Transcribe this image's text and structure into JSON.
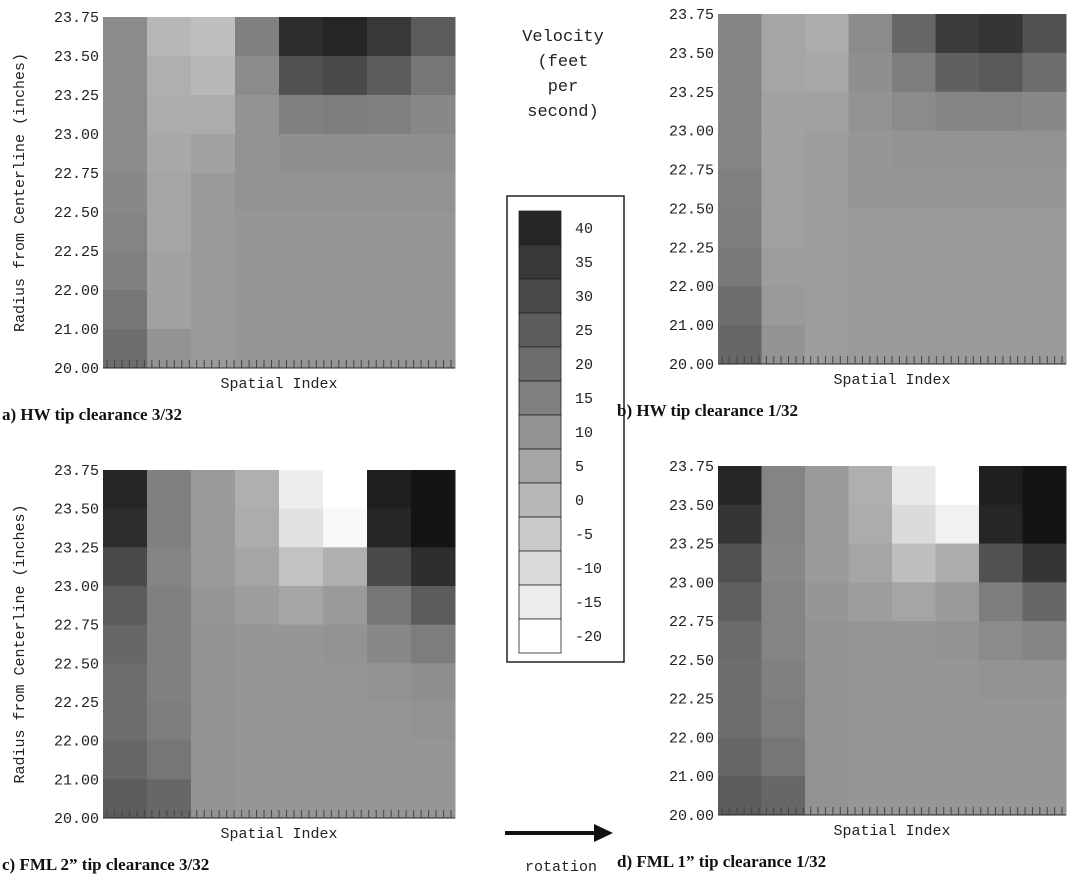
{
  "chart_data": [
    {
      "type": "heatmap",
      "caption": "a) HW tip clearance 3/32",
      "y_label": "Radius from Centerline (inches)",
      "x_label": "Spatial Index",
      "y_categories": [
        "23.75",
        "23.50",
        "23.25",
        "23.00",
        "22.75",
        "22.50",
        "22.25",
        "22.00",
        "21.00",
        "20.00"
      ],
      "z": [
        [
          12,
          0,
          -2,
          15,
          38,
          40,
          35,
          25
        ],
        [
          12,
          2,
          0,
          12,
          28,
          30,
          25,
          18
        ],
        [
          12,
          3,
          3,
          10,
          15,
          16,
          15,
          13
        ],
        [
          12,
          4,
          6,
          10,
          11,
          11,
          11,
          11
        ],
        [
          13,
          5,
          8,
          10,
          10,
          10,
          10,
          10
        ],
        [
          14,
          5,
          8,
          9,
          9,
          9,
          9,
          9
        ],
        [
          15,
          6,
          8,
          9,
          9,
          9,
          9,
          9
        ],
        [
          18,
          6,
          8,
          9,
          9,
          9,
          9,
          9
        ],
        [
          20,
          10,
          8,
          9,
          9,
          9,
          9,
          9
        ]
      ]
    },
    {
      "type": "heatmap",
      "caption": "b) HW tip clearance 1/32",
      "x_label": "Spatial Index",
      "y_categories": [
        "23.75",
        "23.50",
        "23.25",
        "23.00",
        "22.75",
        "22.50",
        "22.25",
        "22.00",
        "21.00",
        "20.00"
      ],
      "z": [
        [
          14,
          5,
          3,
          12,
          22,
          34,
          36,
          28
        ],
        [
          14,
          5,
          4,
          11,
          16,
          24,
          26,
          20
        ],
        [
          14,
          6,
          6,
          10,
          12,
          14,
          14,
          13
        ],
        [
          14,
          6,
          7,
          9,
          10,
          10,
          10,
          10
        ],
        [
          15,
          6,
          7,
          9,
          9,
          9,
          9,
          9
        ],
        [
          16,
          6,
          7,
          8,
          8,
          8,
          8,
          8
        ],
        [
          17,
          7,
          7,
          8,
          8,
          8,
          8,
          8
        ],
        [
          20,
          8,
          7,
          8,
          8,
          8,
          8,
          8
        ],
        [
          22,
          10,
          7,
          8,
          8,
          8,
          8,
          8
        ]
      ]
    },
    {
      "type": "heatmap",
      "caption": "c) FML 2” tip clearance 3/32",
      "y_label": "Radius from Centerline (inches)",
      "x_label": "Spatial Index",
      "y_categories": [
        "23.75",
        "23.50",
        "23.25",
        "23.00",
        "22.75",
        "22.50",
        "22.25",
        "22.00",
        "21.00",
        "20.00"
      ],
      "z": [
        [
          40,
          15,
          8,
          2,
          -15,
          -20,
          42,
          45
        ],
        [
          38,
          15,
          8,
          3,
          -12,
          -18,
          40,
          45
        ],
        [
          30,
          14,
          8,
          5,
          -3,
          2,
          30,
          38
        ],
        [
          25,
          15,
          9,
          7,
          5,
          8,
          18,
          25
        ],
        [
          22,
          15,
          10,
          9,
          9,
          10,
          13,
          16
        ],
        [
          20,
          15,
          10,
          9,
          9,
          9,
          10,
          11
        ],
        [
          20,
          16,
          10,
          9,
          9,
          9,
          9,
          10
        ],
        [
          22,
          18,
          10,
          9,
          9,
          9,
          9,
          9
        ],
        [
          25,
          22,
          10,
          9,
          9,
          9,
          9,
          9
        ]
      ]
    },
    {
      "type": "heatmap",
      "caption": "d) FML 1” tip clearance 1/32",
      "x_label": "Spatial Index",
      "y_categories": [
        "23.75",
        "23.50",
        "23.25",
        "23.00",
        "22.75",
        "22.50",
        "22.25",
        "22.00",
        "21.00",
        "20.00"
      ],
      "z": [
        [
          40,
          14,
          8,
          2,
          -14,
          -20,
          42,
          45
        ],
        [
          36,
          14,
          8,
          3,
          -10,
          -16,
          40,
          45
        ],
        [
          28,
          13,
          8,
          5,
          -2,
          3,
          28,
          36
        ],
        [
          24,
          14,
          9,
          7,
          5,
          8,
          16,
          22
        ],
        [
          21,
          14,
          10,
          9,
          9,
          10,
          12,
          14
        ],
        [
          20,
          15,
          10,
          9,
          9,
          9,
          10,
          10
        ],
        [
          20,
          16,
          10,
          9,
          9,
          9,
          9,
          9
        ],
        [
          22,
          18,
          10,
          9,
          9,
          9,
          9,
          9
        ],
        [
          25,
          22,
          10,
          9,
          9,
          9,
          9,
          9
        ]
      ]
    }
  ],
  "legend": {
    "title_lines": [
      "Velocity",
      "(feet",
      "per",
      "second)"
    ],
    "ticks": [
      40,
      35,
      30,
      25,
      20,
      15,
      10,
      5,
      0,
      -5,
      -10,
      -15,
      -20
    ],
    "clim": [
      -20,
      45
    ]
  },
  "annotation": "rotation"
}
